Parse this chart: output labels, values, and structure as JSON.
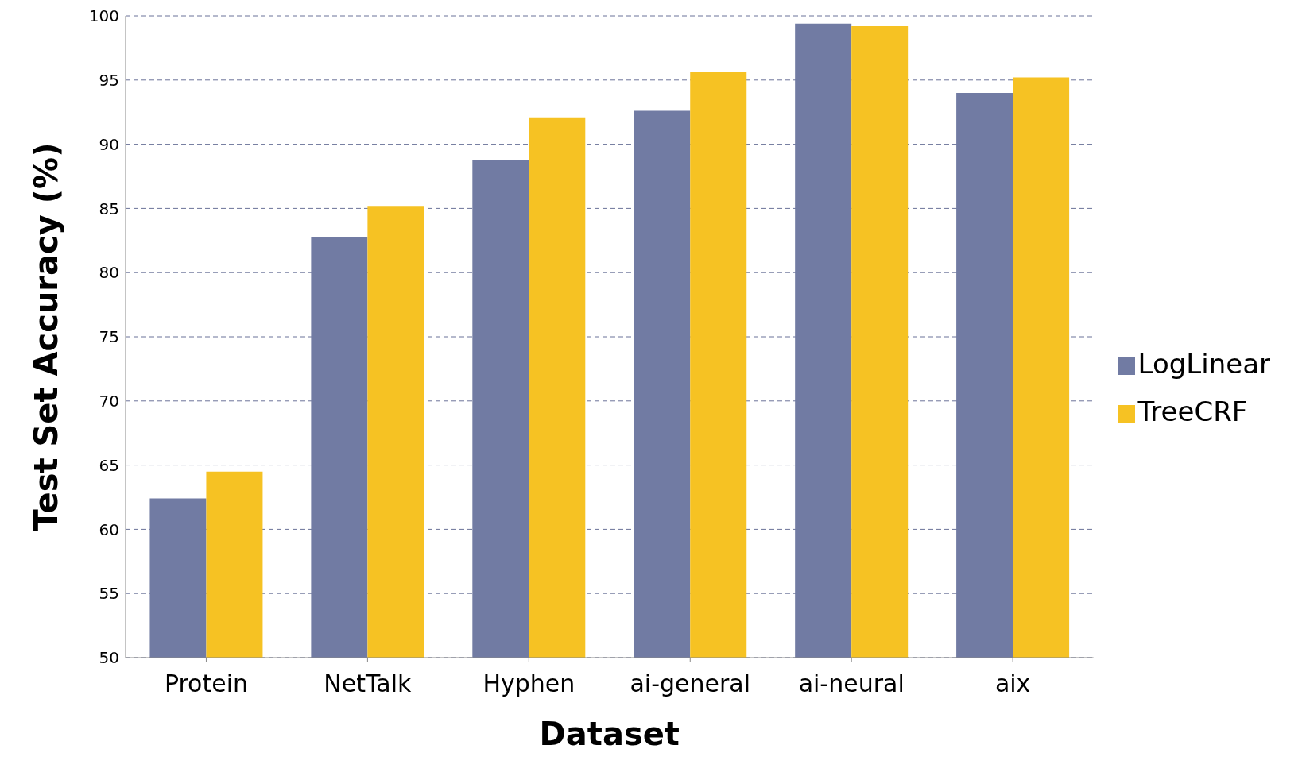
{
  "chart_data": {
    "type": "bar",
    "xlabel": "Dataset",
    "ylabel": "Test Set Accuracy (%)",
    "categories": [
      "Protein",
      "NetTalk",
      "Hyphen",
      "ai-general",
      "ai-neural",
      "aix"
    ],
    "series": [
      {
        "name": "LogLinear",
        "color": "#717ba3",
        "values": [
          62.4,
          82.8,
          88.8,
          92.6,
          99.4,
          94.0
        ]
      },
      {
        "name": "TreeCRF",
        "color": "#f6c223",
        "values": [
          64.5,
          85.2,
          92.1,
          95.6,
          99.2,
          95.2
        ]
      }
    ],
    "ylim": [
      50,
      100
    ],
    "yticks": [
      50,
      55,
      60,
      65,
      70,
      75,
      80,
      85,
      90,
      95,
      100
    ],
    "grid": "y",
    "legend": "right"
  }
}
